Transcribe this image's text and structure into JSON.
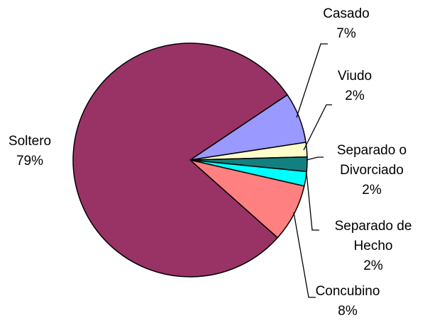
{
  "chart_data": {
    "type": "pie",
    "categories": [
      "Soltero",
      "Casado",
      "Viudo",
      "Separado o Divorciado",
      "Separado de Hecho",
      "Concubino"
    ],
    "values": [
      79,
      7,
      2,
      2,
      2,
      8
    ],
    "value_labels": [
      "79%",
      "7%",
      "2%",
      "2%",
      "2%",
      "8%"
    ],
    "colors": [
      "#993366",
      "#9999ff",
      "#ffffcc",
      "#138080",
      "#00ffff",
      "#ff8080"
    ]
  }
}
